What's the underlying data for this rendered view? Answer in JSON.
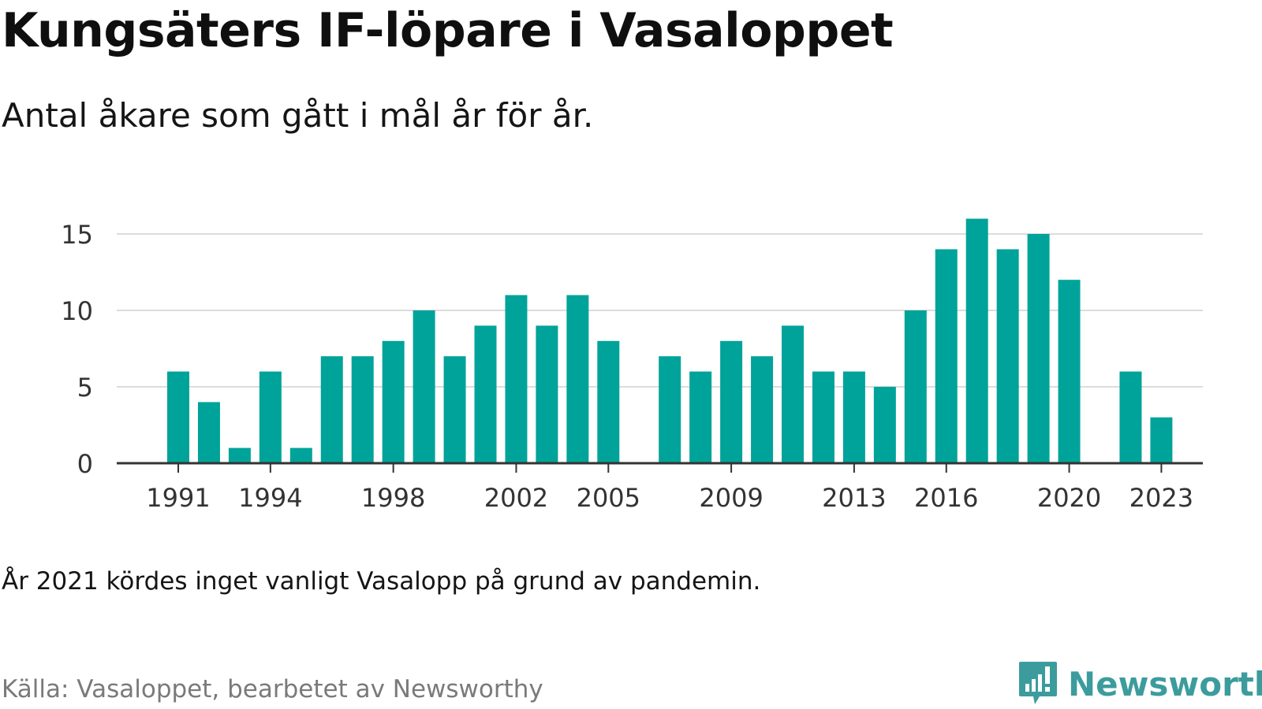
{
  "title": "Kungsäters IF-löpare i Vasaloppet",
  "subtitle": "Antal åkare som gått i mål år för år.",
  "footnote": "År 2021 kördes inget vanligt Vasalopp på grund av pandemin.",
  "source": "Källa: Vasaloppet, bearbetet av Newsworthy",
  "brand": "Newsworthy",
  "colors": {
    "bar": "#00a39a",
    "grid": "#dcdcdc",
    "axis": "#333333",
    "tick_text": "#333333",
    "brand": "#3c9c9d"
  },
  "chart_data": {
    "type": "bar",
    "categories": [
      1991,
      1992,
      1993,
      1994,
      1995,
      1996,
      1997,
      1998,
      1999,
      2000,
      2001,
      2002,
      2003,
      2004,
      2005,
      2006,
      2007,
      2008,
      2009,
      2010,
      2011,
      2012,
      2013,
      2014,
      2015,
      2016,
      2017,
      2018,
      2019,
      2020,
      2021,
      2022,
      2023
    ],
    "values": [
      6,
      4,
      1,
      6,
      1,
      7,
      7,
      8,
      10,
      7,
      9,
      11,
      9,
      11,
      8,
      0,
      7,
      6,
      8,
      7,
      9,
      6,
      6,
      5,
      10,
      14,
      16,
      14,
      15,
      12,
      0,
      6,
      3
    ],
    "x_tick_labels": [
      "1991",
      "1994",
      "1998",
      "2002",
      "2005",
      "2009",
      "2013",
      "2016",
      "2020",
      "2023"
    ],
    "y_ticks": [
      0,
      5,
      10,
      15
    ],
    "ylim": [
      0,
      16.5
    ],
    "xlabel": "",
    "ylabel": "",
    "grid": true,
    "legend": "none"
  }
}
